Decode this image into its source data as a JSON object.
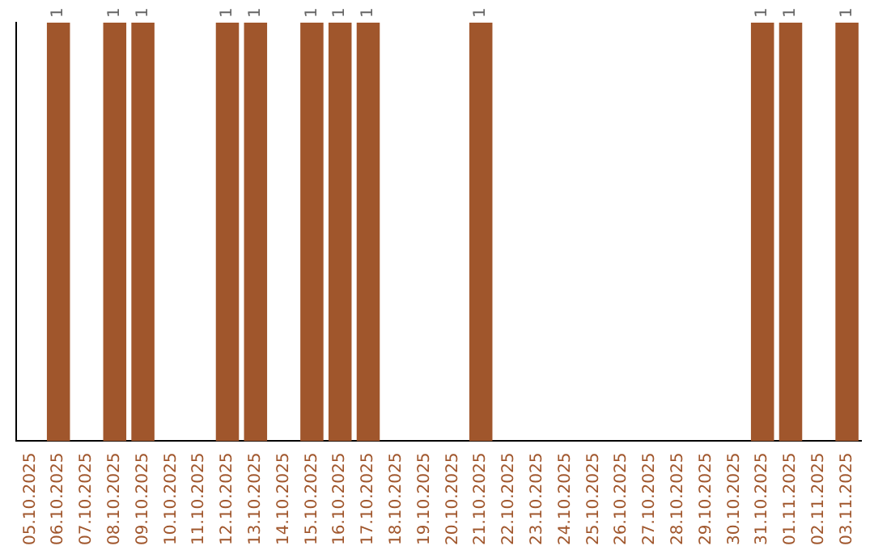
{
  "chart_data": {
    "type": "bar",
    "categories": [
      "05.10.2025",
      "06.10.2025",
      "07.10.2025",
      "08.10.2025",
      "09.10.2025",
      "10.10.2025",
      "11.10.2025",
      "12.10.2025",
      "13.10.2025",
      "14.10.2025",
      "15.10.2025",
      "16.10.2025",
      "17.10.2025",
      "18.10.2025",
      "19.10.2025",
      "20.10.2025",
      "21.10.2025",
      "22.10.2025",
      "23.10.2025",
      "24.10.2025",
      "25.10.2025",
      "26.10.2025",
      "27.10.2025",
      "28.10.2025",
      "29.10.2025",
      "30.10.2025",
      "31.10.2025",
      "01.11.2025",
      "02.11.2025",
      "03.11.2025"
    ],
    "values": [
      0,
      1,
      0,
      1,
      1,
      0,
      0,
      1,
      1,
      0,
      1,
      1,
      1,
      0,
      0,
      0,
      1,
      0,
      0,
      0,
      0,
      0,
      0,
      0,
      0,
      0,
      1,
      1,
      0,
      1
    ],
    "value_labels": [
      null,
      "1",
      null,
      "1",
      "1",
      null,
      null,
      "1",
      "1",
      null,
      "1",
      "1",
      "1",
      null,
      null,
      null,
      "1",
      null,
      null,
      null,
      null,
      null,
      null,
      null,
      null,
      null,
      "1",
      "1",
      null,
      "1"
    ],
    "color": "#a0562c",
    "grid": false,
    "legend": false
  }
}
